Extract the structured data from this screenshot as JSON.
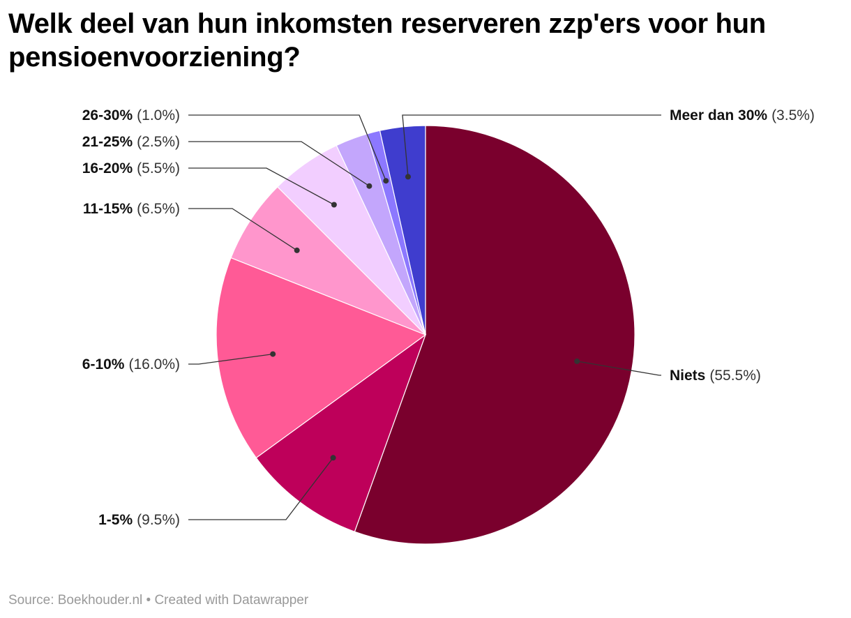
{
  "chart_data": {
    "type": "pie",
    "title": "Welk deel van hun inkomsten reserveren zzp'ers voor hun pensioenvoorziening?",
    "categories": [
      "Niets",
      "1-5%",
      "6-10%",
      "11-15%",
      "16-20%",
      "21-25%",
      "26-30%",
      "Meer dan 30%"
    ],
    "values": [
      55.5,
      9.5,
      16.0,
      6.5,
      5.5,
      2.5,
      1.0,
      3.5
    ],
    "value_labels": [
      "(55.5%)",
      "(9.5%)",
      "(16.0%)",
      "(6.5%)",
      "(5.5%)",
      "(2.5%)",
      "(1.0%)",
      "(3.5%)"
    ],
    "colors": [
      "#7a002d",
      "#be005a",
      "#ff5a96",
      "#ff96cc",
      "#f2ceff",
      "#c3a6fc",
      "#8c78ff",
      "#3f3dce"
    ],
    "start_angle_deg": 0,
    "direction": "clockwise",
    "legend": "none"
  },
  "source": "Source: Boekhouder.nl • Created with Datawrapper"
}
